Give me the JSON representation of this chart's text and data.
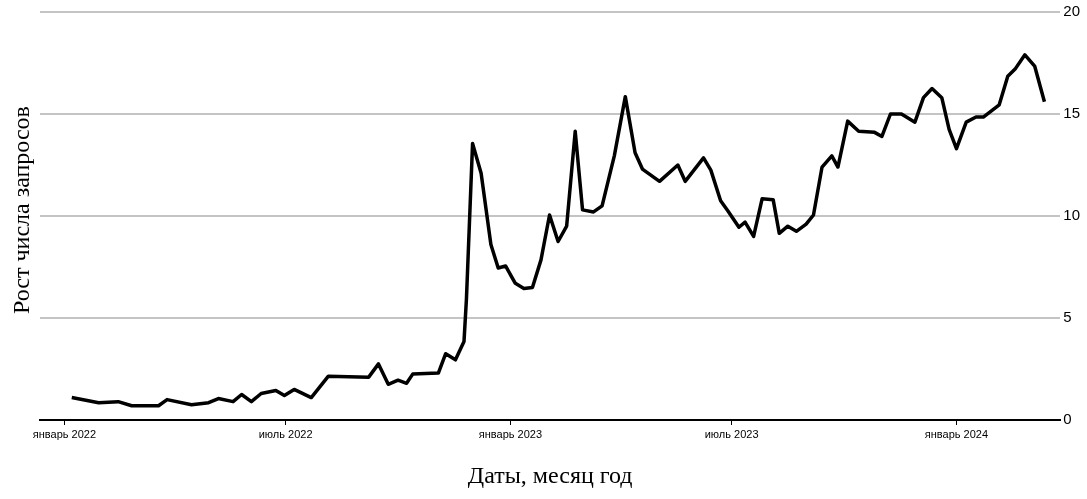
{
  "chart_data": {
    "type": "line",
    "xlabel": "Даты, месяц год",
    "ylabel": "Рост числа запросов",
    "x": [
      "2022-01-07",
      "2022-01-29",
      "2022-02-14",
      "2022-02-25",
      "2022-03-19",
      "2022-03-26",
      "2022-04-15",
      "2022-04-29",
      "2022-05-07",
      "2022-05-19",
      "2022-05-26",
      "2022-06-03",
      "2022-06-11",
      "2022-06-23",
      "2022-06-30",
      "2022-07-08",
      "2022-07-22",
      "2022-08-05",
      "2022-09-07",
      "2022-09-15",
      "2022-09-23",
      "2022-10-01",
      "2022-10-08",
      "2022-10-13",
      "2022-11-03",
      "2022-11-09",
      "2022-11-17",
      "2022-11-24",
      "2022-11-26",
      "2022-12-01",
      "2022-12-08",
      "2022-12-16",
      "2022-12-22",
      "2022-12-28",
      "2023-01-05",
      "2023-01-12",
      "2023-01-19",
      "2023-01-26",
      "2023-02-02",
      "2023-02-09",
      "2023-02-16",
      "2023-02-23",
      "2023-03-01",
      "2023-03-10",
      "2023-03-17",
      "2023-03-27",
      "2023-04-05",
      "2023-04-13",
      "2023-04-19",
      "2023-05-03",
      "2023-05-18",
      "2023-05-24",
      "2023-06-08",
      "2023-06-14",
      "2023-06-22",
      "2023-06-28",
      "2023-07-07",
      "2023-07-12",
      "2023-07-19",
      "2023-07-26",
      "2023-08-04",
      "2023-08-09",
      "2023-08-16",
      "2023-08-23",
      "2023-08-31",
      "2023-09-06",
      "2023-09-13",
      "2023-09-21",
      "2023-09-26",
      "2023-10-04",
      "2023-10-13",
      "2023-10-26",
      "2023-11-01",
      "2023-11-08",
      "2023-11-17",
      "2023-11-28",
      "2023-12-05",
      "2023-12-12",
      "2023-12-20",
      "2023-12-26",
      "2024-01-01",
      "2024-01-09",
      "2024-01-17",
      "2024-01-23",
      "2024-02-05",
      "2024-02-12",
      "2024-02-18",
      "2024-02-26",
      "2024-03-05",
      "2024-03-13"
    ],
    "series": [
      {
        "color": "#000000",
        "values": [
          1.1,
          0.85,
          0.9,
          0.7,
          0.7,
          1.0,
          0.75,
          0.85,
          1.05,
          0.9,
          1.25,
          0.9,
          1.3,
          1.45,
          1.2,
          1.5,
          1.1,
          2.15,
          2.1,
          2.75,
          1.75,
          1.95,
          1.8,
          2.25,
          2.3,
          3.25,
          2.95,
          3.85,
          5.95,
          13.55,
          12.1,
          8.6,
          7.45,
          7.55,
          6.7,
          6.45,
          6.5,
          7.85,
          10.05,
          8.75,
          9.5,
          14.15,
          10.3,
          10.2,
          10.5,
          12.95,
          15.85,
          13.1,
          12.3,
          11.7,
          12.5,
          11.7,
          12.85,
          12.25,
          10.75,
          10.25,
          9.45,
          9.7,
          9.0,
          10.85,
          10.8,
          9.15,
          9.5,
          9.25,
          9.6,
          10.05,
          12.4,
          12.95,
          12.4,
          14.65,
          14.15,
          14.1,
          13.9,
          15.0,
          15.0,
          14.6,
          15.8,
          16.25,
          15.8,
          14.25,
          13.3,
          14.6,
          14.85,
          14.85,
          15.45,
          16.85,
          17.2,
          17.9,
          17.35,
          15.6
        ]
      }
    ],
    "xlim": [
      "2021-12-12",
      "2024-03-26"
    ],
    "xticks": [
      {
        "value": "2022-01-01",
        "label": "январь 2022"
      },
      {
        "value": "2022-07-01",
        "label": "июль 2022"
      },
      {
        "value": "2023-01-01",
        "label": "январь 2023"
      },
      {
        "value": "2023-07-01",
        "label": "июль 2023"
      },
      {
        "value": "2024-01-01",
        "label": "январь 2024"
      }
    ],
    "ylim": [
      0,
      20
    ],
    "yticks": [
      0,
      5,
      10,
      15,
      20
    ],
    "grid": "y",
    "legend": false,
    "marker": "none",
    "line_style": "solid"
  }
}
